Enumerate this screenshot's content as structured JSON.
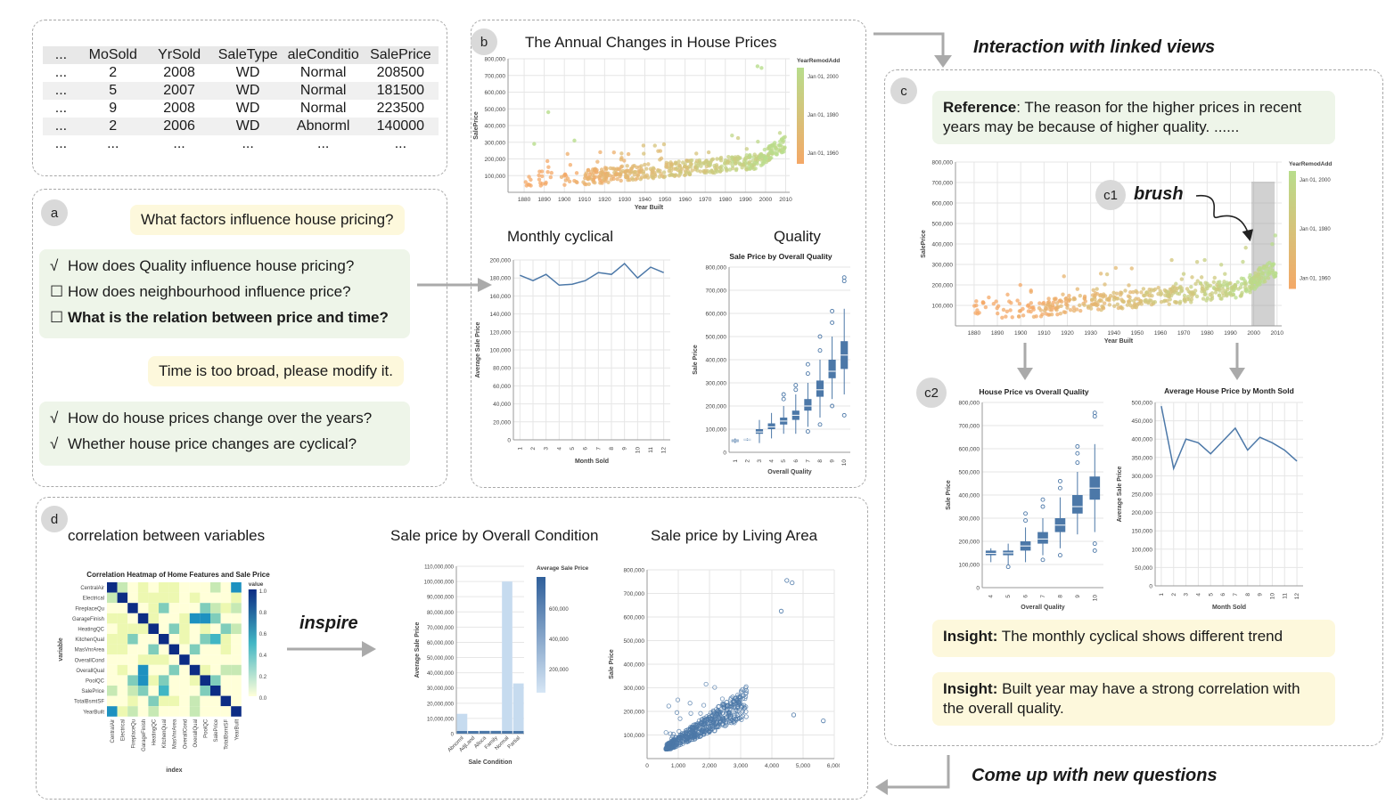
{
  "table": {
    "columns": [
      "...",
      "MoSold",
      "YrSold",
      "SaleType",
      "aleConditio",
      "SalePrice"
    ],
    "rows": [
      [
        "...",
        "2",
        "2008",
        "WD",
        "Normal",
        "208500"
      ],
      [
        "...",
        "5",
        "2007",
        "WD",
        "Normal",
        "181500"
      ],
      [
        "...",
        "9",
        "2008",
        "WD",
        "Normal",
        "223500"
      ],
      [
        "...",
        "2",
        "2006",
        "WD",
        "Abnorml",
        "140000"
      ],
      [
        "...",
        "...",
        "...",
        "...",
        "...",
        "..."
      ]
    ]
  },
  "labels": {
    "a": "a",
    "b": "b",
    "c": "c",
    "c1": "c1",
    "c2": "c2",
    "d": "d"
  },
  "panel_a": {
    "q1": "What factors influence house pricing?",
    "options1": [
      {
        "mark": "√",
        "text": "How does Quality influence house pricing?",
        "bold": false
      },
      {
        "mark": "☐",
        "text": "How does neighbourhood influence price?",
        "bold": false
      },
      {
        "mark": "☐",
        "text": "What is the relation between price and time?",
        "bold": true
      }
    ],
    "q2": "Time is too broad, please modify it.",
    "options2": [
      {
        "mark": "√",
        "text": "How do house prices change over the years?"
      },
      {
        "mark": "√",
        "text": "Whether house price changes are cyclical?"
      }
    ]
  },
  "panel_b": {
    "title": "The Annual Changes in House Prices",
    "monthly_title": "Monthly cyclical",
    "quality_title": "Quality"
  },
  "panel_c": {
    "ref_label": "Reference",
    "ref_text": ": The reason for the higher prices in recent years may be because of higher quality. ......",
    "brush": "brush",
    "insight_label": "Insight:",
    "insight1": " The monthly cyclical shows different trend",
    "insight2": " Built year may have a strong correlation with the overall quality."
  },
  "panel_d": {
    "corr_title": "correlation between variables",
    "inspire": "inspire",
    "cond_title": "Sale price by Overall Condition",
    "area_title": "Sale price by Living Area"
  },
  "flow": {
    "linked": "Interaction with linked views",
    "new_q": "Come up with new questions"
  },
  "colors": {
    "accent_blue": "#4c78a8",
    "user_bg": "#fdf8dc",
    "sys_bg": "#eef5e9",
    "orange": "#f4b46c",
    "green": "#a8d88c"
  },
  "chart_data": [
    {
      "id": "year-scatter",
      "type": "scatter",
      "xlabel": "Year Built",
      "ylabel": "SalePrice",
      "xticks": [
        1880,
        1890,
        1900,
        1910,
        1920,
        1930,
        1940,
        1950,
        1960,
        1970,
        1980,
        1990,
        2000,
        2010
      ],
      "yticks": [
        100000,
        200000,
        300000,
        400000,
        500000,
        600000,
        700000,
        800000
      ],
      "ytick_labels": [
        "100,000",
        "200,000",
        "300,000",
        "400,000",
        "500,000",
        "600,000",
        "700,000",
        "800,000"
      ],
      "xlim": [
        1872,
        2012
      ],
      "ylim": [
        0,
        800000
      ],
      "legend_title": "YearRemodAdd",
      "legend_ticks": [
        "Jan 01, 2000",
        "Jan 01, 1980",
        "Jan 01, 1960"
      ],
      "outliers": [
        [
          1892,
          480000
        ],
        [
          1996,
          755000
        ],
        [
          1998,
          745000
        ],
        [
          1885,
          290000
        ],
        [
          1905,
          310000
        ]
      ]
    },
    {
      "id": "monthly-line",
      "type": "line",
      "xlabel": "Month Sold",
      "ylabel": "Average Sale Price",
      "x": [
        1,
        2,
        3,
        4,
        5,
        6,
        7,
        8,
        9,
        10,
        11,
        12
      ],
      "values": [
        183000,
        177000,
        184000,
        172000,
        173000,
        177000,
        186000,
        184000,
        196000,
        180000,
        192000,
        186000
      ],
      "ylim": [
        0,
        200000
      ],
      "yticks": [
        0,
        20000,
        40000,
        60000,
        80000,
        100000,
        120000,
        140000,
        160000,
        180000,
        200000
      ],
      "ytick_labels": [
        "0",
        "20,000",
        "40,000",
        "60,000",
        "80,000",
        "100,000",
        "120,000",
        "140,000",
        "160,000",
        "180,000",
        "200,000"
      ]
    },
    {
      "id": "quality-box",
      "type": "box",
      "title": "Sale Price by Overall Quality",
      "xlabel": "Overall Quality",
      "ylabel": "Sale Price",
      "categories": [
        "1",
        "2",
        "3",
        "4",
        "5",
        "6",
        "7",
        "8",
        "9",
        "10"
      ],
      "boxes": [
        {
          "min": 40000,
          "q1": 45000,
          "med": 50000,
          "q3": 55000,
          "max": 60000,
          "out": []
        },
        {
          "min": 50000,
          "q1": 52000,
          "med": 55000,
          "q3": 58000,
          "max": 60000,
          "out": []
        },
        {
          "min": 40000,
          "q1": 80000,
          "med": 88000,
          "q3": 100000,
          "max": 140000,
          "out": []
        },
        {
          "min": 60000,
          "q1": 100000,
          "med": 110000,
          "q3": 125000,
          "max": 170000,
          "out": []
        },
        {
          "min": 80000,
          "q1": 120000,
          "med": 135000,
          "q3": 150000,
          "max": 200000,
          "out": [
            230000,
            250000
          ]
        },
        {
          "min": 80000,
          "q1": 140000,
          "med": 160000,
          "q3": 180000,
          "max": 250000,
          "out": [
            270000,
            290000
          ]
        },
        {
          "min": 110000,
          "q1": 180000,
          "med": 200000,
          "q3": 230000,
          "max": 300000,
          "out": [
            340000,
            380000,
            90000
          ]
        },
        {
          "min": 150000,
          "q1": 240000,
          "med": 270000,
          "q3": 310000,
          "max": 400000,
          "out": [
            440000,
            500000,
            120000
          ]
        },
        {
          "min": 230000,
          "q1": 320000,
          "med": 350000,
          "q3": 400000,
          "max": 500000,
          "out": [
            560000,
            610000,
            200000
          ]
        },
        {
          "min": 250000,
          "q1": 360000,
          "med": 420000,
          "q3": 480000,
          "max": 620000,
          "out": [
            740000,
            755000,
            160000
          ]
        }
      ],
      "ylim": [
        0,
        800000
      ],
      "yticks": [
        0,
        100000,
        200000,
        300000,
        400000,
        500000,
        600000,
        700000,
        800000
      ],
      "ytick_labels": [
        "0",
        "100,000",
        "200,000",
        "300,000",
        "400,000",
        "500,000",
        "600,000",
        "700,000",
        "800,000"
      ]
    },
    {
      "id": "c-scatter",
      "type": "scatter",
      "xlabel": "Year Built",
      "ylabel": "SalePrice",
      "xticks": [
        1880,
        1890,
        1900,
        1910,
        1920,
        1930,
        1940,
        1950,
        1960,
        1970,
        1980,
        1990,
        2000,
        2010
      ],
      "yticks": [
        100000,
        200000,
        300000,
        400000,
        500000,
        600000,
        700000,
        800000
      ],
      "ytick_labels": [
        "100,000",
        "200,000",
        "300,000",
        "400,000",
        "500,000",
        "600,000",
        "700,000",
        "800,000"
      ],
      "xlim": [
        1872,
        2012
      ],
      "ylim": [
        0,
        800000
      ],
      "legend_title": "YearRemodAdd",
      "legend_ticks": [
        "Jan 01, 2000",
        "Jan 01, 1980",
        "Jan 01, 1960"
      ],
      "brush_x": [
        1999,
        2009
      ]
    },
    {
      "id": "c2-box",
      "type": "box",
      "title": "House Price vs Overall Quality",
      "xlabel": "Overall Quality",
      "ylabel": "Sale Price",
      "categories": [
        "4",
        "5",
        "6",
        "7",
        "8",
        "9",
        "10"
      ],
      "boxes": [
        {
          "min": 110000,
          "q1": 140000,
          "med": 148000,
          "q3": 160000,
          "max": 170000,
          "out": []
        },
        {
          "min": 100000,
          "q1": 140000,
          "med": 150000,
          "q3": 160000,
          "max": 190000,
          "out": [
            90000
          ]
        },
        {
          "min": 110000,
          "q1": 160000,
          "med": 180000,
          "q3": 200000,
          "max": 260000,
          "out": [
            290000,
            320000
          ]
        },
        {
          "min": 140000,
          "q1": 190000,
          "med": 210000,
          "q3": 240000,
          "max": 300000,
          "out": [
            350000,
            380000,
            120000
          ]
        },
        {
          "min": 170000,
          "q1": 240000,
          "med": 270000,
          "q3": 300000,
          "max": 390000,
          "out": [
            430000,
            460000,
            140000
          ]
        },
        {
          "min": 230000,
          "q1": 320000,
          "med": 350000,
          "q3": 400000,
          "max": 500000,
          "out": [
            540000,
            580000,
            610000
          ]
        },
        {
          "min": 240000,
          "q1": 380000,
          "med": 430000,
          "q3": 480000,
          "max": 620000,
          "out": [
            740000,
            755000,
            190000,
            160000
          ]
        }
      ],
      "ylim": [
        0,
        800000
      ],
      "yticks": [
        0,
        100000,
        200000,
        300000,
        400000,
        500000,
        600000,
        700000,
        800000
      ],
      "ytick_labels": [
        "0",
        "100,000",
        "200,000",
        "300,000",
        "400,000",
        "500,000",
        "600,000",
        "700,000",
        "800,000"
      ]
    },
    {
      "id": "c2-line",
      "type": "line",
      "title": "Average House Price by Month Sold",
      "xlabel": "Month Sold",
      "ylabel": "Average Sale Price",
      "x": [
        1,
        2,
        3,
        4,
        5,
        6,
        7,
        8,
        9,
        10,
        11,
        12
      ],
      "values": [
        490000,
        320000,
        400000,
        390000,
        360000,
        395000,
        430000,
        370000,
        405000,
        390000,
        370000,
        340000
      ],
      "ylim": [
        0,
        500000
      ],
      "yticks": [
        0,
        50000,
        100000,
        150000,
        200000,
        250000,
        300000,
        350000,
        400000,
        450000,
        500000
      ],
      "ytick_labels": [
        "0",
        "50,000",
        "100,000",
        "150,000",
        "200,000",
        "250,000",
        "300,000",
        "350,000",
        "400,000",
        "450,000",
        "500,000"
      ]
    },
    {
      "id": "heatmap",
      "type": "heatmap",
      "title": "Correlation Heatmap of Home Features and Sale Price",
      "xlabel": "index",
      "ylabel": "variable",
      "variables": [
        "CentralAir",
        "Electrical",
        "FireplaceQu",
        "GarageFinish",
        "HeatingQC",
        "KitchenQual",
        "MasVnrArea",
        "OverallCond",
        "OverallQual",
        "PoolQC",
        "SalePrice",
        "TotalBsmtSF",
        "YearBuilt"
      ],
      "legend_title": "value",
      "legend_ticks": [
        "1.0",
        "0.8",
        "0.6",
        "0.4",
        "0.2",
        "0.0"
      ]
    },
    {
      "id": "condition-bar",
      "type": "bar",
      "xlabel": "Sale Condition",
      "ylabel": "Average Sale Price",
      "categories": [
        "Abnorml",
        "AdjLand",
        "Alloca",
        "Family",
        "Normal",
        "Partial"
      ],
      "values": [
        13000000,
        1000000,
        2000000,
        2000000,
        100000000,
        33000000
      ],
      "ylim": [
        0,
        110000000
      ],
      "yticks": [
        0,
        10000000,
        20000000,
        30000000,
        40000000,
        50000000,
        60000000,
        70000000,
        80000000,
        90000000,
        100000000,
        110000000
      ],
      "ytick_labels": [
        "0",
        "10,000,000",
        "20,000,000",
        "30,000,000",
        "40,000,000",
        "50,000,000",
        "60,000,000",
        "70,000,000",
        "80,000,000",
        "90,000,000",
        "100,000,000",
        "110,000,000"
      ],
      "legend_title": "Average Sale Price",
      "legend_ticks": [
        "600,000",
        "400,000",
        "200,000"
      ]
    },
    {
      "id": "area-scatter",
      "type": "scatter",
      "xlabel": "",
      "ylabel": "Sale Price",
      "xlim": [
        0,
        6000
      ],
      "ylim": [
        0,
        800000
      ],
      "xticks": [
        0,
        1000,
        2000,
        3000,
        4000,
        5000,
        6000
      ],
      "xtick_labels": [
        "0",
        "1,000",
        "2,000",
        "3,000",
        "4,000",
        "5,000",
        "6,000"
      ],
      "yticks": [
        100000,
        200000,
        300000,
        400000,
        500000,
        600000,
        700000,
        800000
      ],
      "ytick_labels": [
        "100,000",
        "200,000",
        "300,000",
        "400,000",
        "500,000",
        "600,000",
        "700,000",
        "800,000"
      ],
      "outliers": [
        [
          4480,
          755000
        ],
        [
          4650,
          745000
        ],
        [
          4700,
          185000
        ],
        [
          5650,
          160000
        ],
        [
          4300,
          625000
        ]
      ]
    }
  ]
}
